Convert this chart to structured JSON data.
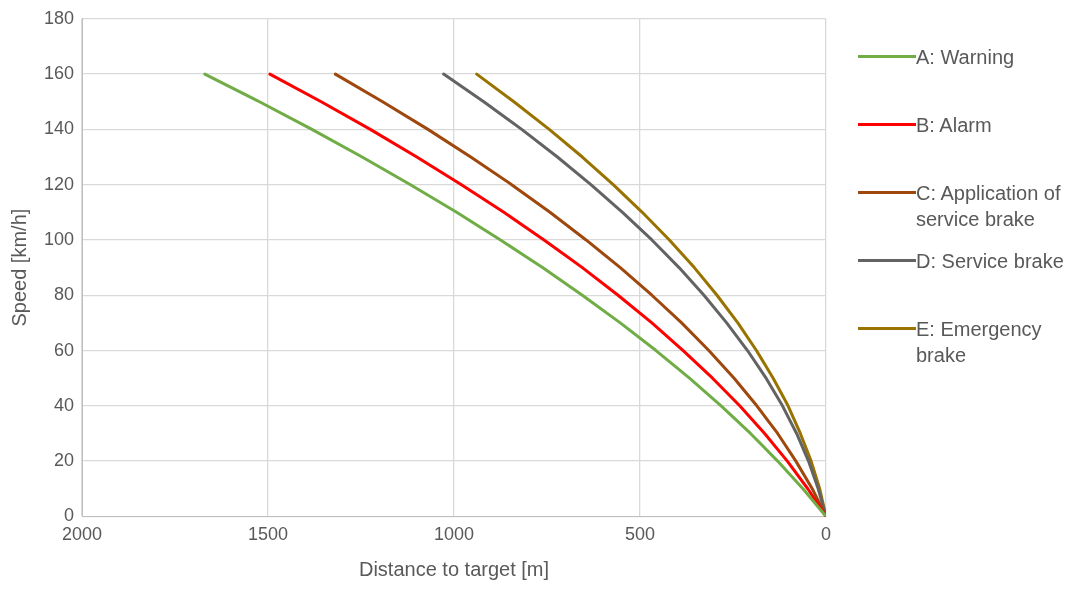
{
  "chart_data": {
    "type": "line",
    "xlabel": "Distance to target [m]",
    "ylabel": "Speed [km/h]",
    "xlim": [
      2000,
      0
    ],
    "xticks": [
      2000,
      1500,
      1000,
      500,
      0
    ],
    "ylim": [
      0,
      180
    ],
    "yticks": [
      0,
      20,
      40,
      60,
      80,
      100,
      120,
      140,
      160,
      180
    ],
    "grid": true,
    "legend": "right",
    "marker": "none",
    "line_style": "solid",
    "series": [
      {
        "name": "A: Warning",
        "color": "#70ad47",
        "x": [
          0,
          62,
          130,
          203,
          282,
          367,
          457,
          553,
          655,
          762,
          875,
          993,
          1117,
          1247,
          1382,
          1523,
          1670
        ],
        "values": [
          0,
          10,
          20,
          30,
          40,
          50,
          60,
          70,
          80,
          90,
          100,
          110,
          120,
          130,
          140,
          150,
          160
        ]
      },
      {
        "name": "B: Alarm",
        "color": "#ff0000",
        "x": [
          0,
          49,
          104,
          165,
          232,
          305,
          384,
          468,
          559,
          655,
          758,
          866,
          980,
          1100,
          1225,
          1357,
          1495
        ],
        "values": [
          0,
          10,
          20,
          30,
          40,
          50,
          60,
          70,
          80,
          90,
          100,
          110,
          120,
          130,
          140,
          150,
          160
        ]
      },
      {
        "name": "C: Application of service brake",
        "color": "#9e480e",
        "x": [
          0,
          37,
          81,
          130,
          186,
          247,
          315,
          388,
          468,
          553,
          645,
          742,
          845,
          955,
          1070,
          1192,
          1319
        ],
        "values": [
          0,
          10,
          20,
          30,
          40,
          50,
          60,
          70,
          80,
          90,
          100,
          110,
          120,
          130,
          140,
          150,
          160
        ]
      },
      {
        "name": "D: Service brake",
        "color": "#636363",
        "x": [
          0,
          21,
          47,
          79,
          117,
          161,
          211,
          267,
          328,
          395,
          468,
          547,
          632,
          722,
          818,
          920,
          1028
        ],
        "values": [
          0,
          10,
          20,
          30,
          40,
          50,
          60,
          70,
          80,
          90,
          100,
          110,
          120,
          130,
          140,
          150,
          160
        ]
      },
      {
        "name": "E: Emergency brake",
        "color": "#997300",
        "x": [
          0,
          17,
          40,
          69,
          102,
          142,
          187,
          237,
          293,
          354,
          421,
          494,
          572,
          655,
          744,
          839,
          939
        ],
        "values": [
          0,
          10,
          20,
          30,
          40,
          50,
          60,
          70,
          80,
          90,
          100,
          110,
          120,
          130,
          140,
          150,
          160
        ]
      }
    ]
  }
}
